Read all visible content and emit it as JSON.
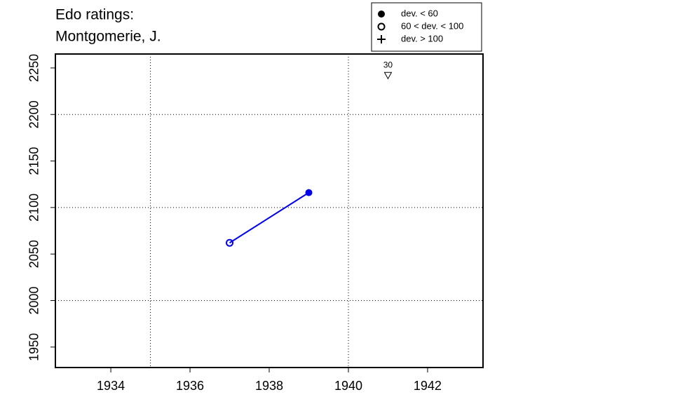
{
  "chart_data": {
    "type": "line",
    "title": [
      "Edo ratings:",
      "Montgomerie, J."
    ],
    "x": [
      1937,
      1939
    ],
    "series": [
      {
        "color": "#0000ee",
        "values": [
          2062,
          2116
        ],
        "markers": [
          "open",
          "filled"
        ]
      }
    ],
    "xlim": [
      1932.6,
      1943.4
    ],
    "ylim": [
      1928,
      2265
    ],
    "xticks": [
      1934,
      1936,
      1938,
      1940,
      1942
    ],
    "yticks": [
      1950,
      2000,
      2050,
      2100,
      2150,
      2200,
      2250
    ],
    "xgrid": [
      1935,
      1940
    ],
    "ygrid": [
      2000,
      2100,
      2200
    ],
    "annotations": [
      {
        "x": 1941,
        "y": 2246,
        "label": "30",
        "marker": "triangle-down"
      }
    ],
    "legend": {
      "position": "top-right",
      "entries": [
        {
          "label": "dev. < 60",
          "symbol": "filled"
        },
        {
          "label": "60 < dev. < 100",
          "symbol": "open"
        },
        {
          "label": "dev. > 100",
          "symbol": "plus"
        }
      ]
    }
  }
}
